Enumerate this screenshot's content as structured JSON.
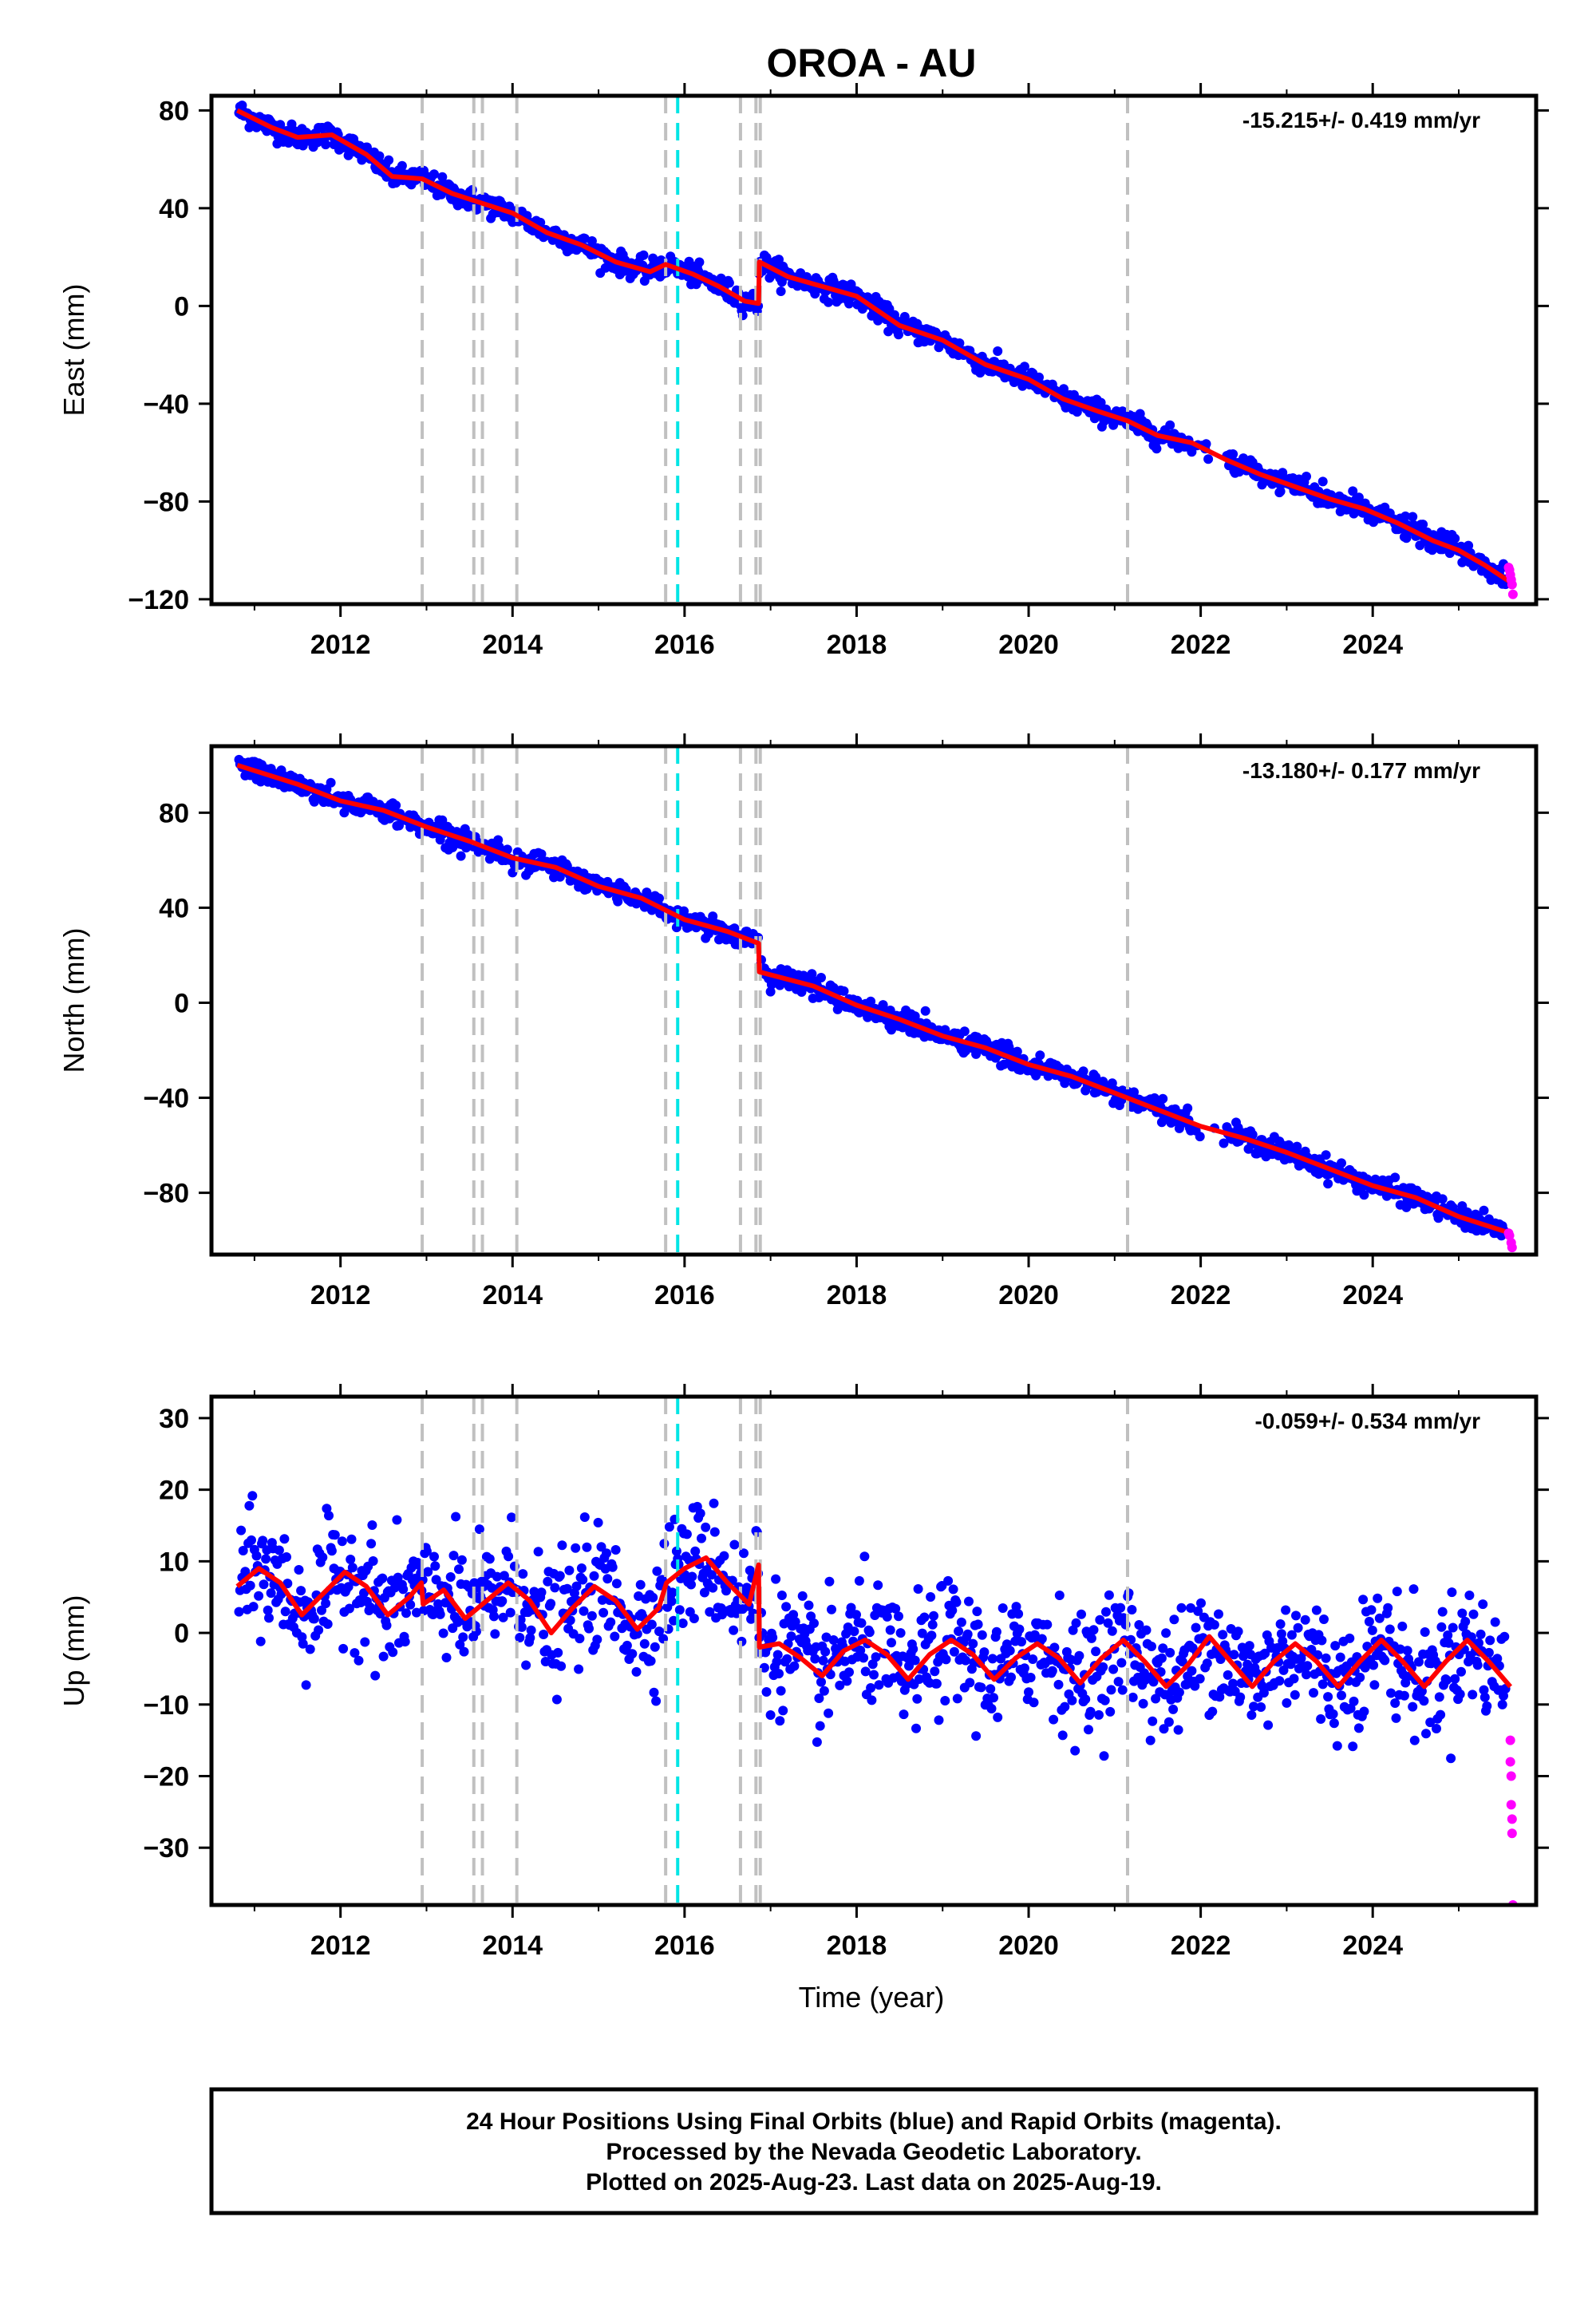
{
  "chart_title": "OROA - AU",
  "x_axis_label": "Time (year)",
  "colors": {
    "final_points": "#0000ff",
    "rapid_points": "#ff00ff",
    "model_line": "#ff0000",
    "event_line": "#c0c0c0",
    "highlight_event": "#00e5e5"
  },
  "footer": {
    "line1": "24 Hour Positions Using Final Orbits (blue) and Rapid Orbits (magenta).",
    "line2": "Processed by the Nevada Geodetic Laboratory.",
    "line3": "Plotted on 2025-Aug-23. Last data on 2025-Aug-19."
  },
  "chart_data": [
    {
      "type": "scatter",
      "name": "east",
      "ylabel": "East (mm)",
      "rate_text": "-15.215+/- 0.419 mm/yr",
      "xlim": [
        2010.5,
        2025.9
      ],
      "ylim": [
        -122,
        86
      ],
      "xticks": [
        2012,
        2014,
        2016,
        2018,
        2020,
        2022,
        2024
      ],
      "yticks": [
        -120,
        -80,
        -40,
        0,
        40,
        80
      ],
      "event_lines": [
        2012.95,
        2013.55,
        2013.65,
        2014.05,
        2015.78,
        2016.65,
        2016.83,
        2016.88,
        2021.15
      ],
      "highlight_events": [
        2015.92
      ],
      "model_line": {
        "x": [
          2010.8,
          2011.2,
          2011.5,
          2011.9,
          2012.3,
          2012.6,
          2012.95,
          2013.3,
          2013.65,
          2014.0,
          2014.4,
          2014.8,
          2015.2,
          2015.6,
          2015.78,
          2016.1,
          2016.4,
          2016.7,
          2016.86,
          2016.87,
          2017.2,
          2017.6,
          2018.0,
          2018.5,
          2019.0,
          2019.5,
          2020.0,
          2020.4,
          2020.8,
          2021.15,
          2021.5,
          2021.9,
          2022.3,
          2022.7,
          2023.1,
          2023.5,
          2023.9,
          2024.3,
          2024.7,
          2025.0,
          2025.3,
          2025.6
        ],
        "y": [
          80,
          73,
          69,
          70,
          62,
          53,
          52,
          46,
          42,
          38,
          30,
          25,
          18,
          14,
          17,
          13,
          8,
          2,
          1,
          18,
          12,
          8,
          4,
          -8,
          -14,
          -24,
          -30,
          -38,
          -43,
          -47,
          -53,
          -56,
          -63,
          -69,
          -74,
          -79,
          -83,
          -89,
          -96,
          -100,
          -106,
          -113
        ]
      },
      "rapid_points": {
        "x": [
          2025.58,
          2025.59,
          2025.6,
          2025.61,
          2025.62,
          2025.63
        ],
        "y": [
          -107,
          -108,
          -110,
          -112,
          -114,
          -118
        ]
      }
    },
    {
      "type": "scatter",
      "name": "north",
      "ylabel": "North (mm)",
      "rate_text": "-13.180+/- 0.177 mm/yr",
      "xlim": [
        2010.5,
        2025.9
      ],
      "ylim": [
        -106,
        108
      ],
      "xticks": [
        2012,
        2014,
        2016,
        2018,
        2020,
        2022,
        2024
      ],
      "yticks": [
        -80,
        -40,
        0,
        40,
        80
      ],
      "event_lines": [
        2012.95,
        2013.55,
        2013.65,
        2014.05,
        2015.78,
        2016.65,
        2016.83,
        2016.88,
        2021.15
      ],
      "highlight_events": [
        2015.92
      ],
      "model_line": {
        "x": [
          2010.8,
          2011.5,
          2012.0,
          2012.5,
          2013.0,
          2013.5,
          2014.0,
          2014.5,
          2015.0,
          2015.5,
          2016.0,
          2016.5,
          2016.86,
          2016.87,
          2017.5,
          2018.0,
          2018.5,
          2019.0,
          2019.5,
          2020.0,
          2020.5,
          2021.0,
          2021.5,
          2022.0,
          2022.5,
          2023.0,
          2023.5,
          2024.0,
          2024.5,
          2025.0,
          2025.6
        ],
        "y": [
          100,
          92,
          85,
          81,
          74,
          68,
          61,
          57,
          49,
          44,
          35,
          30,
          25,
          13,
          7,
          -1,
          -7,
          -14,
          -19,
          -26,
          -31,
          -38,
          -45,
          -52,
          -57,
          -63,
          -70,
          -77,
          -82,
          -90,
          -97
        ]
      },
      "rapid_points": {
        "x": [
          2025.58,
          2025.59,
          2025.61,
          2025.62
        ],
        "y": [
          -97,
          -98,
          -101,
          -103
        ]
      }
    },
    {
      "type": "scatter",
      "name": "up",
      "ylabel": "Up (mm)",
      "rate_text": "-0.059+/- 0.534 mm/yr",
      "xlim": [
        2010.5,
        2025.9
      ],
      "ylim": [
        -38,
        33
      ],
      "xticks": [
        2012,
        2014,
        2016,
        2018,
        2020,
        2022,
        2024
      ],
      "yticks": [
        -30,
        -20,
        -10,
        0,
        10,
        20,
        30
      ],
      "event_lines": [
        2012.95,
        2013.55,
        2013.65,
        2014.05,
        2015.78,
        2016.65,
        2016.83,
        2016.88,
        2021.15
      ],
      "highlight_events": [
        2015.92
      ],
      "model_line": {
        "x": [
          2010.8,
          2011.05,
          2011.3,
          2011.55,
          2011.8,
          2012.05,
          2012.3,
          2012.55,
          2012.8,
          2012.94,
          2012.96,
          2013.2,
          2013.45,
          2013.7,
          2013.95,
          2014.2,
          2014.45,
          2014.7,
          2014.95,
          2015.2,
          2015.45,
          2015.7,
          2015.79,
          2016.0,
          2016.25,
          2016.5,
          2016.75,
          2016.86,
          2016.87,
          2017.1,
          2017.35,
          2017.6,
          2017.85,
          2018.1,
          2018.35,
          2018.6,
          2018.85,
          2019.1,
          2019.35,
          2019.6,
          2019.85,
          2020.1,
          2020.35,
          2020.6,
          2020.85,
          2021.1,
          2021.35,
          2021.6,
          2021.85,
          2022.1,
          2022.35,
          2022.6,
          2022.85,
          2023.1,
          2023.35,
          2023.6,
          2023.85,
          2024.1,
          2024.35,
          2024.6,
          2024.85,
          2025.1,
          2025.35,
          2025.6
        ],
        "y": [
          6.5,
          9.0,
          7.0,
          2.5,
          5.5,
          8.5,
          6.5,
          2.5,
          5.0,
          7.0,
          4.0,
          6.0,
          2.0,
          4.5,
          7.0,
          4.5,
          0.0,
          3.5,
          6.5,
          4.5,
          0.5,
          3.5,
          7.0,
          9.0,
          10.5,
          7.0,
          4.0,
          9.5,
          -2.0,
          -1.5,
          -3.5,
          -6.0,
          -2.5,
          -1.0,
          -3.0,
          -6.5,
          -3.0,
          -1.0,
          -3.0,
          -6.5,
          -3.5,
          -1.5,
          -3.5,
          -7.0,
          -3.5,
          -1.0,
          -4.0,
          -7.5,
          -4.5,
          -0.5,
          -4.0,
          -7.5,
          -4.0,
          -1.5,
          -4.0,
          -7.5,
          -4.0,
          -1.0,
          -4.0,
          -7.5,
          -4.0,
          -1.0,
          -4.0,
          -7.5
        ]
      },
      "rapid_points": {
        "x": [
          2025.6,
          2025.6,
          2025.61,
          2025.61,
          2025.62,
          2025.62,
          2025.63
        ],
        "y": [
          -15,
          -18,
          -20,
          -24,
          -26,
          -28,
          -38
        ]
      }
    }
  ]
}
